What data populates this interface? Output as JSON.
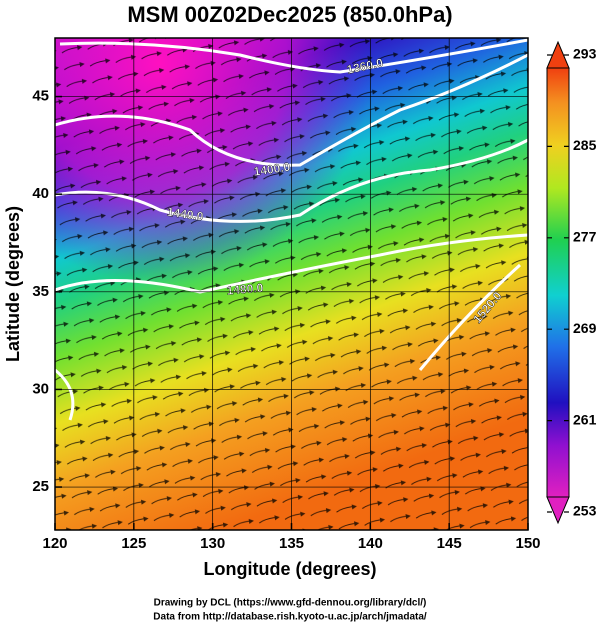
{
  "chart_data": {
    "type": "map",
    "title": "MSM 00Z02Dec2025 (850.0hPa)",
    "x_label": "Longitude (degrees)",
    "y_label": "Latitude (degrees)",
    "xlim": [
      120,
      150
    ],
    "xticks": [
      120,
      125,
      130,
      135,
      140,
      145,
      150
    ],
    "ylim": [
      22.8,
      48
    ],
    "yticks": [
      25,
      30,
      35,
      40,
      45
    ],
    "grid": true,
    "colorbar": {
      "lim": [
        253,
        293
      ],
      "ticks": [
        253,
        261,
        269,
        277,
        285,
        293
      ]
    },
    "contour_labels": [
      "1360.0",
      "1400.0",
      "1440.0",
      "1480.0",
      "1520.0"
    ],
    "credits": [
      "Drawing by DCL (https://www.gfd-dennou.org/library/dcl/)",
      "Data from http://database.rish.kyoto-u.ac.jp/arch/jmadata/"
    ]
  }
}
